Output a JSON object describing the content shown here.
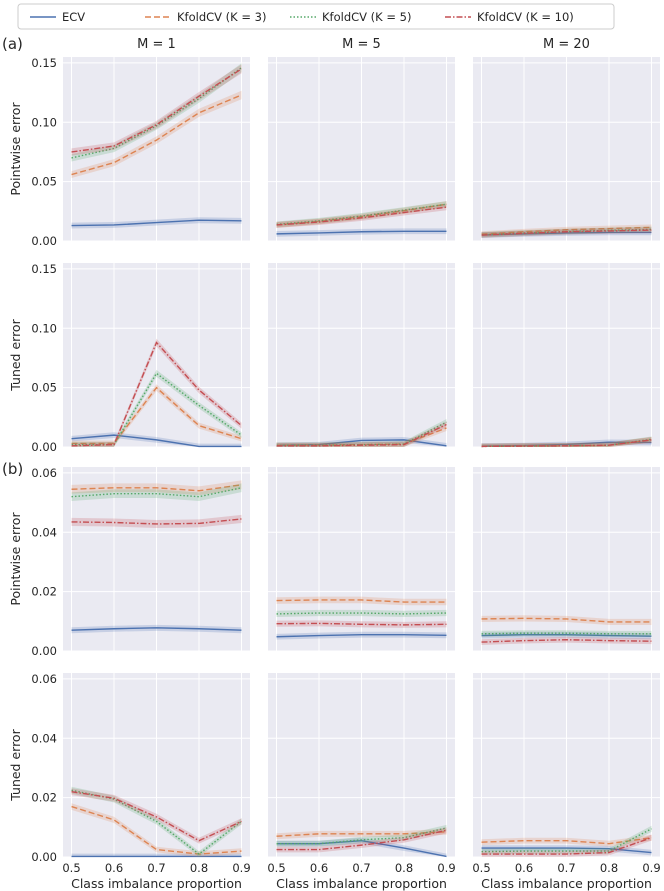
{
  "chart_data": {
    "type": "line",
    "x": [
      0.5,
      0.6,
      0.7,
      0.8,
      0.9
    ],
    "xticks": [
      "0.5",
      "0.6",
      "0.7",
      "0.8",
      "0.9"
    ],
    "xlabel": "Class imbalance proportion",
    "legend": {
      "position": "top",
      "entries": [
        {
          "key": "ecv",
          "label": "ECV",
          "color": "#4c72b0",
          "dash": ""
        },
        {
          "key": "k3",
          "label": "KfoldCV (K = 3)",
          "color": "#dd8452",
          "dash": "6,3"
        },
        {
          "key": "k5",
          "label": "KfoldCV (K = 5)",
          "color": "#55a868",
          "dash": "1.5,2"
        },
        {
          "key": "k10",
          "label": "KfoldCV (K = 10)",
          "color": "#c44e52",
          "dash": "6,2,1.5,2"
        }
      ]
    },
    "columns": [
      "M = 1",
      "M = 5",
      "M = 20"
    ],
    "panel_labels": [
      "(a)",
      "(b)"
    ],
    "rows": [
      {
        "ylabel": "Pointwise error",
        "ylim": [
          0,
          0.155
        ],
        "yticks": [
          "0.00",
          "0.05",
          "0.10",
          "0.15"
        ],
        "ytick_values": [
          0,
          0.05,
          0.1,
          0.15
        ],
        "panels": [
          {
            "ecv": [
              0.013,
              0.0135,
              0.0155,
              0.0175,
              0.017
            ],
            "k3": [
              0.056,
              0.066,
              0.085,
              0.108,
              0.123
            ],
            "k5": [
              0.07,
              0.078,
              0.097,
              0.12,
              0.146
            ],
            "k10": [
              0.075,
              0.08,
              0.098,
              0.122,
              0.145
            ]
          },
          {
            "ecv": [
              0.006,
              0.0068,
              0.0078,
              0.0082,
              0.0082
            ],
            "k3": [
              0.0135,
              0.0165,
              0.0205,
              0.0255,
              0.031
            ],
            "k5": [
              0.014,
              0.017,
              0.021,
              0.026,
              0.031
            ],
            "k10": [
              0.0135,
              0.016,
              0.0195,
              0.024,
              0.0285
            ]
          },
          {
            "ecv": [
              0.005,
              0.006,
              0.0068,
              0.0072,
              0.0072
            ],
            "k3": [
              0.0058,
              0.0078,
              0.0095,
              0.0105,
              0.0115
            ],
            "k5": [
              0.0052,
              0.0068,
              0.008,
              0.009,
              0.0098
            ],
            "k10": [
              0.005,
              0.0065,
              0.0078,
              0.0085,
              0.0092
            ]
          }
        ]
      },
      {
        "ylabel": "Tuned error",
        "ylim": [
          0,
          0.155
        ],
        "yticks": [
          "0.00",
          "0.05",
          "0.10",
          "0.15"
        ],
        "ytick_values": [
          0,
          0.05,
          0.1,
          0.15
        ],
        "panels": [
          {
            "ecv": [
              0.007,
              0.01,
              0.006,
              0.0005,
              0.0005
            ],
            "k3": [
              0.003,
              0.003,
              0.05,
              0.018,
              0.007
            ],
            "k5": [
              0.002,
              0.002,
              0.062,
              0.035,
              0.01
            ],
            "k10": [
              0.001,
              0.002,
              0.088,
              0.048,
              0.018
            ]
          },
          {
            "ecv": [
              0.0015,
              0.002,
              0.0055,
              0.006,
              0.001
            ],
            "k3": [
              0.0015,
              0.0015,
              0.002,
              0.0025,
              0.016
            ],
            "k5": [
              0.0015,
              0.0015,
              0.002,
              0.0025,
              0.021
            ],
            "k10": [
              0.001,
              0.001,
              0.0015,
              0.002,
              0.019
            ]
          },
          {
            "ecv": [
              0.0008,
              0.0012,
              0.0022,
              0.004,
              0.0038
            ],
            "k3": [
              0.0005,
              0.0008,
              0.001,
              0.0015,
              0.006
            ],
            "k5": [
              0.0005,
              0.0008,
              0.001,
              0.0015,
              0.0065
            ],
            "k10": [
              0.0005,
              0.0008,
              0.001,
              0.0015,
              0.006
            ]
          }
        ]
      },
      {
        "ylabel": "Pointwise error",
        "ylim": [
          0,
          0.062
        ],
        "yticks": [
          "0.00",
          "0.02",
          "0.04",
          "0.06"
        ],
        "ytick_values": [
          0,
          0.02,
          0.04,
          0.06
        ],
        "panels": [
          {
            "ecv": [
              0.007,
              0.0075,
              0.0078,
              0.0075,
              0.007
            ],
            "k3": [
              0.0545,
              0.055,
              0.055,
              0.054,
              0.056
            ],
            "k5": [
              0.052,
              0.053,
              0.053,
              0.052,
              0.055
            ],
            "k10": [
              0.0435,
              0.0433,
              0.0428,
              0.043,
              0.0445
            ]
          },
          {
            "ecv": [
              0.0048,
              0.0052,
              0.0055,
              0.0055,
              0.0053
            ],
            "k3": [
              0.017,
              0.0172,
              0.0172,
              0.0165,
              0.0165
            ],
            "k5": [
              0.0125,
              0.0128,
              0.0128,
              0.0125,
              0.0128
            ],
            "k10": [
              0.0092,
              0.0093,
              0.009,
              0.0088,
              0.009
            ]
          },
          {
            "ecv": [
              0.0052,
              0.0055,
              0.0055,
              0.0052,
              0.005
            ],
            "k3": [
              0.0108,
              0.011,
              0.0108,
              0.0098,
              0.0098
            ],
            "k5": [
              0.0058,
              0.006,
              0.006,
              0.0058,
              0.0058
            ],
            "k10": [
              0.003,
              0.0035,
              0.0038,
              0.0035,
              0.0033
            ]
          }
        ]
      },
      {
        "ylabel": "Tuned error",
        "ylim": [
          0,
          0.062
        ],
        "yticks": [
          "0.00",
          "0.02",
          "0.04",
          "0.06"
        ],
        "ytick_values": [
          0,
          0.02,
          0.04,
          0.06
        ],
        "panels": [
          {
            "ecv": [
              0.0002,
              0.0002,
              0.0002,
              0.0002,
              0.0002
            ],
            "k3": [
              0.017,
              0.0125,
              0.0025,
              0.001,
              0.002
            ],
            "k5": [
              0.0225,
              0.0195,
              0.012,
              0.001,
              0.012
            ],
            "k10": [
              0.022,
              0.0198,
              0.0135,
              0.0055,
              0.012
            ]
          },
          {
            "ecv": [
              0.0045,
              0.0045,
              0.0055,
              0.003,
              0.0002
            ],
            "k3": [
              0.007,
              0.0078,
              0.0078,
              0.0078,
              0.0085
            ],
            "k5": [
              0.0045,
              0.0045,
              0.0058,
              0.0065,
              0.0098
            ],
            "k10": [
              0.0025,
              0.0025,
              0.004,
              0.0058,
              0.009
            ]
          },
          {
            "ecv": [
              0.003,
              0.003,
              0.003,
              0.0028,
              0.0015
            ],
            "k3": [
              0.005,
              0.0055,
              0.0055,
              0.0045,
              0.0065
            ],
            "k5": [
              0.0018,
              0.002,
              0.002,
              0.002,
              0.0095
            ],
            "k10": [
              0.001,
              0.001,
              0.001,
              0.0015,
              0.0065
            ]
          }
        ]
      }
    ]
  }
}
